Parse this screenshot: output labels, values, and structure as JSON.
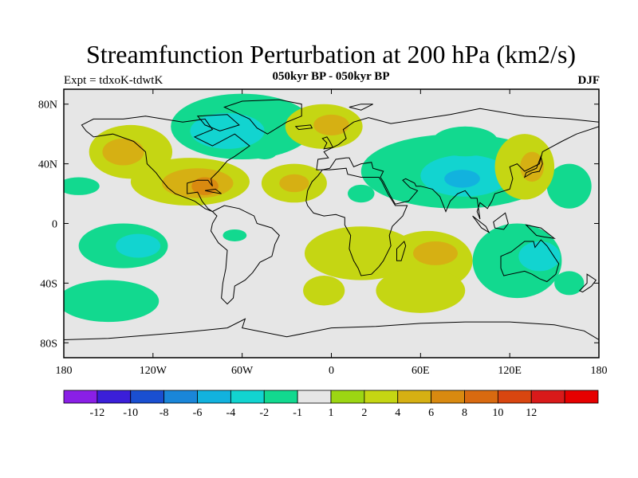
{
  "title": "Streamfunction Perturbation at 200 hPa (km2/s)",
  "subtitle": "050kyr BP - 050kyr BP",
  "left_label": "Expt = tdxoK-tdwtK",
  "right_label": "DJF",
  "map": {
    "lon_ticks": [
      "180",
      "120W",
      "60W",
      "0",
      "60E",
      "120E",
      "180"
    ],
    "lat_ticks": [
      "80N",
      "40N",
      "0",
      "40S",
      "80S"
    ],
    "background_color": "#e6e6e6",
    "coast_color": "#000000"
  },
  "colorbar": {
    "colors": [
      "#8a1fe6",
      "#3b1fd9",
      "#1a4fd1",
      "#1a86d9",
      "#12b2de",
      "#12d4d0",
      "#12d98f",
      "#e6e6e6",
      "#9cd613",
      "#c5d613",
      "#d6b013",
      "#d98a10",
      "#d96a10",
      "#d94610",
      "#d91a1a",
      "#e60000"
    ],
    "labels": [
      "-12",
      "-10",
      "-8",
      "-6",
      "-4",
      "-2",
      "-1",
      "1",
      "2",
      "4",
      "6",
      "8",
      "10",
      "12"
    ]
  },
  "blobs": [
    {
      "cx": -135,
      "cy": 48,
      "rx": 28,
      "ry": 18,
      "level": 9
    },
    {
      "cx": -140,
      "cy": 48,
      "rx": 14,
      "ry": 9,
      "level": 10
    },
    {
      "cx": -170,
      "cy": 25,
      "rx": 14,
      "ry": 6,
      "level": 6
    },
    {
      "cx": -60,
      "cy": 65,
      "rx": 48,
      "ry": 22,
      "level": 6
    },
    {
      "cx": -70,
      "cy": 62,
      "rx": 25,
      "ry": 12,
      "level": 5
    },
    {
      "cx": -95,
      "cy": 28,
      "rx": 40,
      "ry": 16,
      "level": 9
    },
    {
      "cx": -90,
      "cy": 27,
      "rx": 24,
      "ry": 10,
      "level": 10
    },
    {
      "cx": -85,
      "cy": 25,
      "rx": 9,
      "ry": 6,
      "level": 11
    },
    {
      "cx": -25,
      "cy": 27,
      "rx": 22,
      "ry": 13,
      "level": 9
    },
    {
      "cx": -25,
      "cy": 27,
      "rx": 10,
      "ry": 6,
      "level": 10
    },
    {
      "cx": -5,
      "cy": 65,
      "rx": 26,
      "ry": 15,
      "level": 9
    },
    {
      "cx": 0,
      "cy": 66,
      "rx": 12,
      "ry": 7,
      "level": 10
    },
    {
      "cx": -45,
      "cy": 47,
      "rx": 8,
      "ry": 4,
      "level": 6
    },
    {
      "cx": 20,
      "cy": 20,
      "rx": 9,
      "ry": 6,
      "level": 6
    },
    {
      "cx": 85,
      "cy": 35,
      "rx": 65,
      "ry": 25,
      "level": 6
    },
    {
      "cx": 90,
      "cy": 32,
      "rx": 30,
      "ry": 14,
      "level": 5
    },
    {
      "cx": 88,
      "cy": 30,
      "rx": 12,
      "ry": 6,
      "level": 4
    },
    {
      "cx": 90,
      "cy": 55,
      "rx": 22,
      "ry": 10,
      "level": 6
    },
    {
      "cx": 160,
      "cy": 25,
      "rx": 15,
      "ry": 15,
      "level": 6
    },
    {
      "cx": 130,
      "cy": 38,
      "rx": 20,
      "ry": 22,
      "level": 9
    },
    {
      "cx": 135,
      "cy": 38,
      "rx": 8,
      "ry": 10,
      "level": 10
    },
    {
      "cx": -140,
      "cy": -15,
      "rx": 30,
      "ry": 15,
      "level": 6
    },
    {
      "cx": -130,
      "cy": -15,
      "rx": 15,
      "ry": 8,
      "level": 5
    },
    {
      "cx": -65,
      "cy": -8,
      "rx": 8,
      "ry": 4,
      "level": 6
    },
    {
      "cx": -150,
      "cy": -52,
      "rx": 34,
      "ry": 14,
      "level": 6
    },
    {
      "cx": 20,
      "cy": -20,
      "rx": 38,
      "ry": 18,
      "level": 9
    },
    {
      "cx": 65,
      "cy": -25,
      "rx": 30,
      "ry": 20,
      "level": 9
    },
    {
      "cx": 70,
      "cy": -20,
      "rx": 15,
      "ry": 8,
      "level": 10
    },
    {
      "cx": 60,
      "cy": -45,
      "rx": 30,
      "ry": 15,
      "level": 9
    },
    {
      "cx": 125,
      "cy": -25,
      "rx": 30,
      "ry": 25,
      "level": 6
    },
    {
      "cx": 140,
      "cy": -22,
      "rx": 14,
      "ry": 10,
      "level": 5
    },
    {
      "cx": 160,
      "cy": -40,
      "rx": 10,
      "ry": 8,
      "level": 6
    },
    {
      "cx": -5,
      "cy": -45,
      "rx": 14,
      "ry": 10,
      "level": 9
    }
  ]
}
